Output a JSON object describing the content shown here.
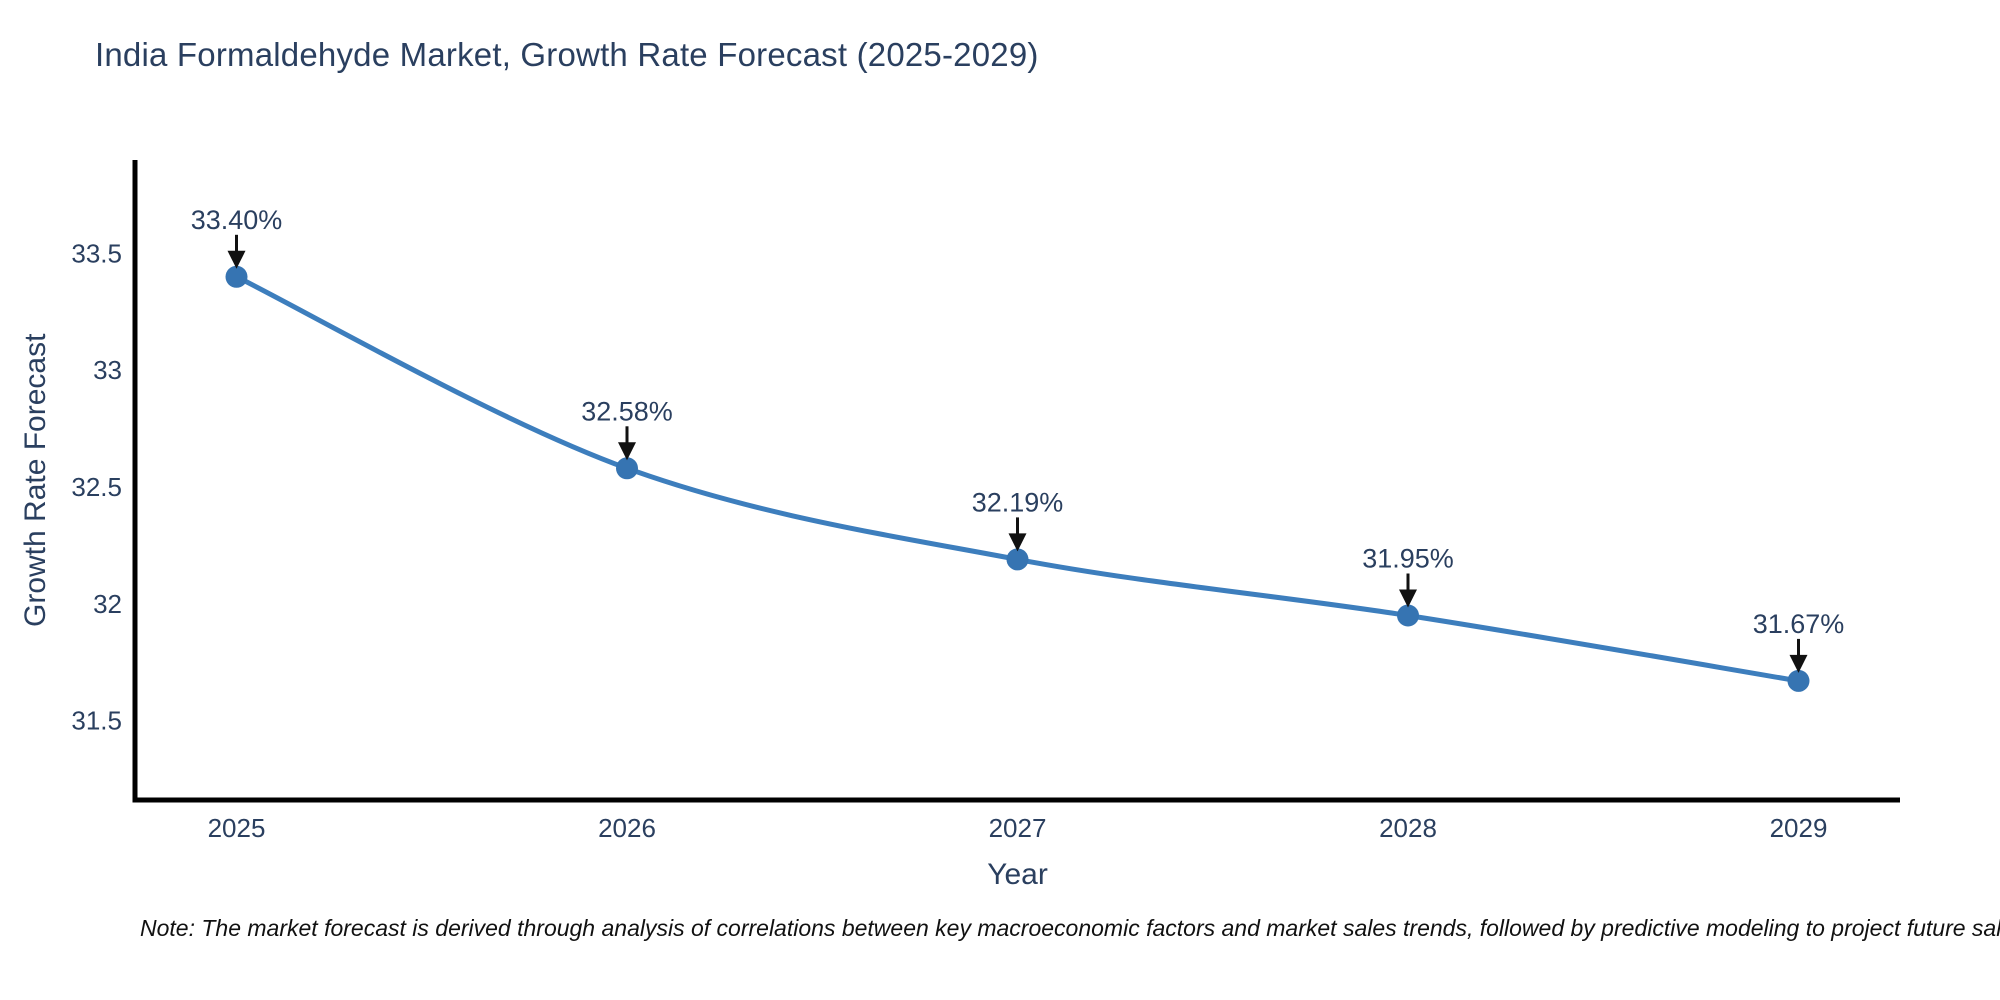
{
  "title": "India Formaldehyde Market, Growth Rate Forecast (2025-2029)",
  "note": "Note: The market forecast is derived through analysis of correlations between key macroeconomic factors and market sales trends, followed by predictive modeling to project future sales.",
  "colors": {
    "background": "#ffffff",
    "line": "#3d7ebd",
    "marker": "#3674b2",
    "axis_line": "#000000",
    "axis_text": "#2a3f5f",
    "title_text": "#2a3f5f",
    "annotation_text": "#2a3f5f",
    "arrow": "#111111",
    "note_text": "#111111"
  },
  "chart_data": {
    "type": "line",
    "title": "India Formaldehyde Market, Growth Rate Forecast (2025-2029)",
    "xlabel": "Year",
    "ylabel": "Growth Rate Forecast",
    "x": [
      2025,
      2026,
      2027,
      2028,
      2029
    ],
    "series": [
      {
        "name": "Growth Rate Forecast",
        "values": [
          33.4,
          32.58,
          32.19,
          31.95,
          31.67
        ],
        "point_labels": [
          "33.40%",
          "32.58%",
          "32.19%",
          "31.95%",
          "31.67%"
        ]
      }
    ],
    "x_tick_labels": [
      "2025",
      "2026",
      "2027",
      "2028",
      "2029"
    ],
    "y_ticks": [
      31.5,
      32,
      32.5,
      33,
      33.5
    ],
    "y_tick_labels": [
      "31.5",
      "32",
      "32.5",
      "33",
      "33.5"
    ],
    "xlim": [
      2024.74,
      2029.26
    ],
    "ylim": [
      31.16,
      33.9
    ],
    "grid": false,
    "legend": "none",
    "line_shape": "spline",
    "annotations_arrow": "down"
  }
}
